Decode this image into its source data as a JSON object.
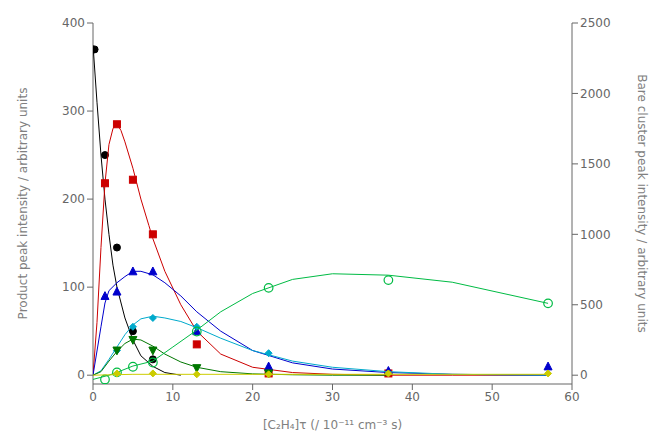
{
  "chart_data": {
    "type": "line",
    "xlabel": "[C₂H₄]τ (/ 10⁻¹¹ cm⁻³ s)",
    "ylabel": "Product peak intensity / arbitrary units",
    "y2label": "Bare cluster peak intensity / arbitrary units",
    "xlim": [
      0,
      60
    ],
    "ylim": [
      -10,
      400
    ],
    "y2lim": [
      -62.5,
      2500
    ],
    "xticks": [
      0,
      10,
      20,
      30,
      40,
      50,
      60
    ],
    "yticks": [
      0,
      100,
      200,
      300,
      400
    ],
    "y2ticks": [
      0,
      500,
      1000,
      1500,
      2000,
      2500
    ],
    "grid": false,
    "series": [
      {
        "color": "#000000",
        "marker": "circle",
        "x": [
          0.2,
          1.5,
          3.0,
          5.0,
          7.5
        ],
        "values": [
          370,
          250,
          145,
          50,
          18
        ],
        "curve_x": [
          0.0,
          0.5,
          1.0,
          1.5,
          2.0,
          2.5,
          3.0,
          4.0,
          5.0,
          6.0,
          7.5,
          9.0,
          11.0
        ],
        "curve_values": [
          375,
          310,
          250,
          200,
          160,
          125,
          100,
          65,
          40,
          22,
          10,
          3,
          0
        ]
      },
      {
        "color": "#cc0000",
        "marker": "square",
        "x": [
          1.5,
          3.0,
          5.0,
          7.5,
          13.0,
          22.0,
          37.0
        ],
        "values": [
          218,
          285,
          222,
          160,
          35,
          2,
          2
        ],
        "curve_x": [
          0,
          0.5,
          1.0,
          1.5,
          2.0,
          2.5,
          3.0,
          3.5,
          4.0,
          5.0,
          6.0,
          7.0,
          7.5,
          9.0,
          11.0,
          13.0,
          16.0,
          20.0,
          25.0,
          30.0,
          37.0,
          45.0,
          57.0
        ],
        "curve_values": [
          0,
          60,
          145,
          218,
          262,
          280,
          285,
          278,
          265,
          235,
          200,
          170,
          155,
          118,
          80,
          50,
          24,
          9,
          3,
          1,
          0,
          0,
          0
        ]
      },
      {
        "color": "#0000cc",
        "marker": "triangle",
        "x": [
          1.5,
          3.0,
          5.0,
          7.5,
          13.0,
          22.0,
          37.0,
          57.0
        ],
        "values": [
          90,
          95,
          118,
          118,
          50,
          10,
          5,
          10
        ],
        "curve_x": [
          0,
          1.0,
          1.5,
          2.0,
          3.0,
          4.0,
          5.0,
          6.0,
          7.5,
          9.0,
          11.0,
          13.0,
          16.0,
          20.0,
          25.0,
          30.0,
          37.0,
          45.0,
          57.0
        ],
        "curve_values": [
          0,
          55,
          82,
          96,
          105,
          112,
          118,
          118,
          114,
          105,
          90,
          72,
          50,
          28,
          14,
          7,
          3,
          1,
          0
        ]
      },
      {
        "color": "#00aacc",
        "marker": "diamond",
        "x": [
          3.0,
          5.0,
          7.5,
          13.0,
          22.0
        ],
        "values": [
          28,
          55,
          65,
          55,
          25
        ],
        "curve_x": [
          0,
          1.0,
          2.0,
          3.0,
          4.0,
          5.0,
          6.0,
          7.5,
          9.0,
          11.0,
          13.0,
          16.0,
          20.0,
          25.0,
          30.0,
          37.0,
          45.0,
          57.0
        ],
        "curve_values": [
          0,
          5,
          18,
          32,
          46,
          57,
          64,
          67,
          65,
          61,
          54,
          42,
          28,
          16,
          9,
          4,
          1,
          0
        ]
      },
      {
        "color": "#007700",
        "marker": "triangle_down",
        "x": [
          3.0,
          5.0,
          7.5,
          13.0,
          22.0
        ],
        "values": [
          28,
          40,
          28,
          8,
          2
        ],
        "curve_x": [
          0,
          1.0,
          2.0,
          3.0,
          4.0,
          5.0,
          6.0,
          7.5,
          9.0,
          11.0,
          13.0,
          16.0,
          20.0,
          25.0,
          30.0,
          37.0
        ],
        "curve_values": [
          0,
          4,
          16,
          27,
          36,
          41,
          40,
          33,
          24,
          15,
          9,
          4,
          1.5,
          0.5,
          0,
          0
        ]
      },
      {
        "color": "#00bb44",
        "marker": "open_circle",
        "axis": "y2",
        "x": [
          1.5,
          3.0,
          5.0,
          7.5,
          13.0,
          22.0,
          37.0,
          57.0
        ],
        "values": [
          -30,
          20,
          60,
          90,
          310,
          620,
          675,
          510
        ],
        "curve_x": [
          0,
          1.0,
          2.0,
          3.0,
          5.0,
          7.5,
          10.0,
          13.0,
          16.0,
          20.0,
          25.0,
          30.0,
          37.0,
          45.0,
          57.0
        ],
        "curve_values": [
          -30,
          -15,
          0,
          20,
          65,
          100,
          200,
          320,
          450,
          580,
          680,
          720,
          710,
          660,
          510
        ]
      },
      {
        "color": "#cccc00",
        "marker": "diamond",
        "x": [
          3.0,
          7.5,
          13.0,
          22.0,
          37.0,
          57.0
        ],
        "values": [
          2,
          2,
          1,
          1,
          2,
          2
        ],
        "curve_x": [
          0,
          5.0,
          10.0,
          20.0,
          30.0,
          57.0
        ],
        "curve_values": [
          0,
          1,
          1,
          1,
          1,
          1
        ]
      }
    ]
  }
}
